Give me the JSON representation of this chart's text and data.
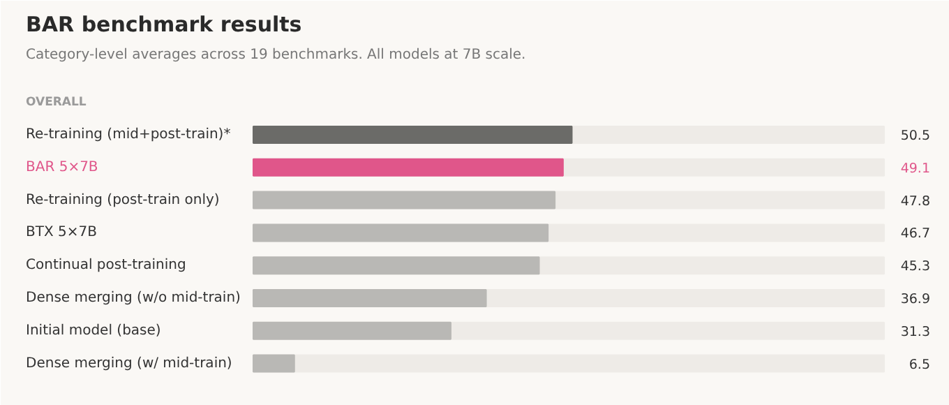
{
  "chart_data": {
    "type": "bar",
    "orientation": "horizontal",
    "title": "BAR benchmark results",
    "subtitle": "Category-level averages across 19 benchmarks. All models at 7B scale.",
    "annotations": [
      "OVERALL"
    ],
    "categories": [
      "Re-training (mid+post-train)*",
      "BAR 5×7B",
      "Re-training (post-train only)",
      "BTX 5×7B",
      "Continual post-training",
      "Dense merging (w/o mid-train)",
      "Initial model (base)",
      "Dense merging (w/ mid-train)"
    ],
    "values": [
      50.5,
      49.1,
      47.8,
      46.7,
      45.3,
      36.9,
      31.3,
      6.5
    ],
    "colors": [
      "#6b6b68",
      "#e0568a",
      "#b9b8b5",
      "#b9b8b5",
      "#b9b8b5",
      "#b9b8b5",
      "#b9b8b5",
      "#b9b8b5"
    ],
    "xlim": [
      0,
      100
    ],
    "data_labels": true
  }
}
